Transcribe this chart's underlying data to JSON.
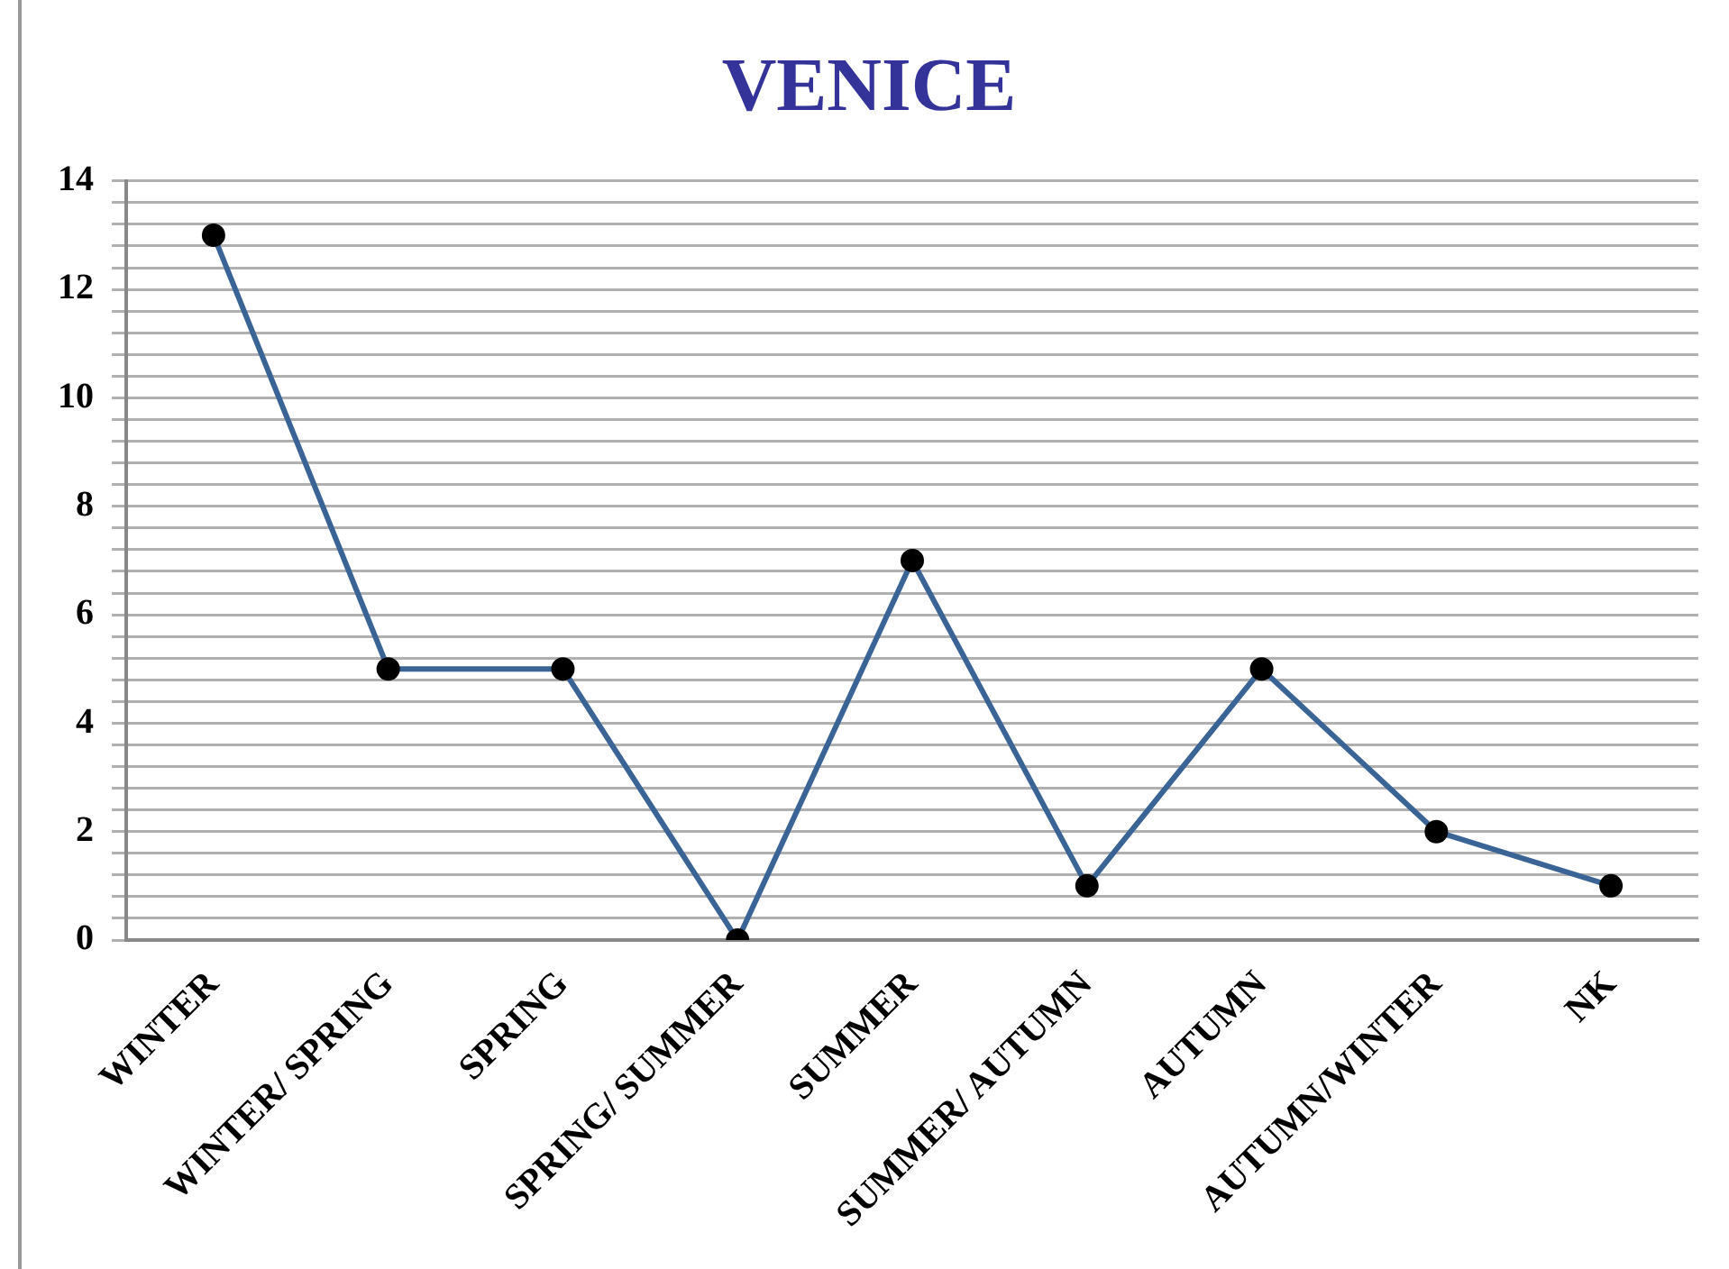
{
  "chart_data": {
    "type": "line",
    "title": "VENICE",
    "categories": [
      "WINTER",
      "WINTER/ SPRING",
      "SPRING",
      "SPRING/ SUMMER",
      "SUMMER",
      "SUMMER/ AUTUMN",
      "AUTUMN",
      "AUTUMN/WINTER",
      "NK"
    ],
    "series": [
      {
        "color": "#3a6496",
        "values": [
          13,
          5,
          5,
          0,
          7,
          1,
          5,
          2,
          1
        ]
      }
    ],
    "marker": "circle",
    "ylim": [
      0,
      14
    ],
    "yticks": [
      0,
      {
        "value": 0.4,
        "label": null
      },
      {
        "value": 0.8,
        "label": null
      },
      {
        "value": 1.2,
        "label": null
      },
      {
        "value": 1.6,
        "label": null
      },
      2,
      {
        "value": 2.4,
        "label": null
      },
      {
        "value": 2.8,
        "label": null
      },
      {
        "value": 3.2,
        "label": null
      },
      {
        "value": 3.6,
        "label": null
      },
      4,
      {
        "value": 4.4,
        "label": null
      },
      {
        "value": 4.8,
        "label": null
      },
      {
        "value": 5.2,
        "label": null
      },
      {
        "value": 5.6,
        "label": null
      },
      6,
      {
        "value": 6.4,
        "label": null
      },
      {
        "value": 6.8,
        "label": null
      },
      {
        "value": 7.2,
        "label": null
      },
      {
        "value": 7.6,
        "label": null
      },
      8,
      {
        "value": 8.4,
        "label": null
      },
      {
        "value": 8.8,
        "label": null
      },
      {
        "value": 9.2,
        "label": null
      },
      {
        "value": 9.6,
        "label": null
      },
      10,
      {
        "value": 10.4,
        "label": null
      },
      {
        "value": 10.8,
        "label": null
      },
      {
        "value": 11.2,
        "label": null
      },
      {
        "value": 11.6,
        "label": null
      },
      12,
      {
        "value": 12.4,
        "label": null
      },
      {
        "value": 12.8,
        "label": null
      },
      {
        "value": 13.2,
        "label": null
      },
      {
        "value": 13.6,
        "label": null
      },
      14
    ],
    "grid": "y",
    "legend": false
  }
}
